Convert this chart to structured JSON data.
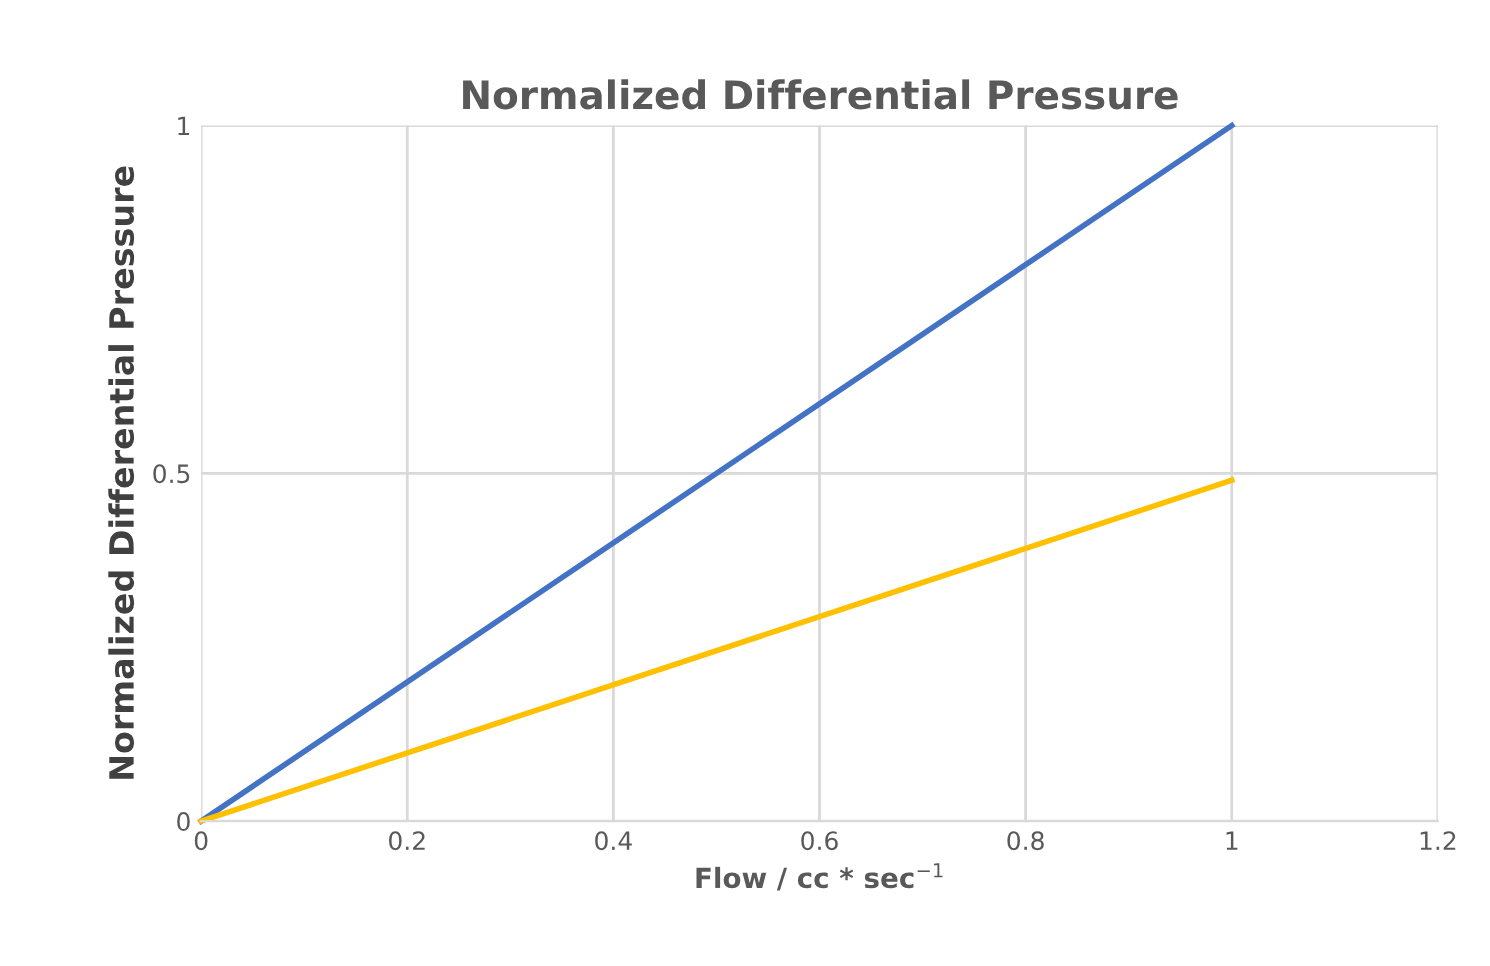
{
  "chart_data": {
    "type": "line",
    "title": "Normalized Differential Pressure",
    "xlabel": "Flow / cc * sec$^{−1}$",
    "ylabel": "Normalized Differential Pressure",
    "xlim": [
      0,
      1.2
    ],
    "xticks": [
      0,
      0.2,
      0.4,
      0.6,
      0.8,
      1,
      1.2
    ],
    "ylim": [
      0,
      1
    ],
    "yticks": [
      0,
      0.5,
      1
    ],
    "grid": true,
    "x": [
      0,
      1
    ],
    "series": [
      {
        "color": "#4472c4",
        "values": [
          0,
          1
        ]
      },
      {
        "color": "#ffc000",
        "values": [
          0,
          0.49
        ]
      }
    ]
  }
}
